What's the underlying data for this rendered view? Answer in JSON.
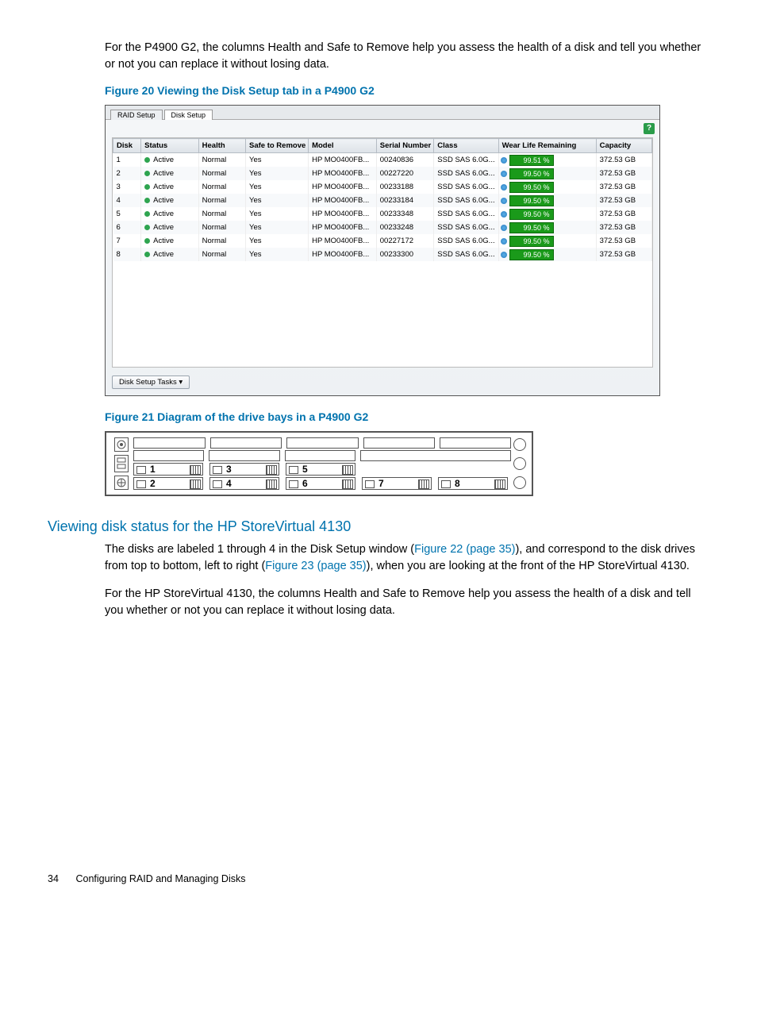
{
  "intro_para": "For the P4900 G2, the columns Health and Safe to Remove help you assess the health of a disk and tell you whether or not you can replace it without losing data.",
  "fig20_caption": "Figure 20 Viewing the Disk Setup tab in a P4900 G2",
  "fig21_caption": "Figure 21 Diagram of the drive bays in a P4900 G2",
  "section_heading": "Viewing disk status for the HP StoreVirtual 4130",
  "sec_para1_a": "The disks are labeled 1 through 4 in the Disk Setup window (",
  "sec_para1_link1": "Figure 22 (page 35)",
  "sec_para1_b": "), and correspond to the disk drives from top to bottom, left to right (",
  "sec_para1_link2": "Figure 23 (page 35)",
  "sec_para1_c": "), when you are looking at the front of the HP StoreVirtual 4130.",
  "sec_para2": "For the HP StoreVirtual 4130, the columns Health and Safe to Remove help you assess the health of a disk and tell you whether or not you can replace it without losing data.",
  "footer_page": "34",
  "footer_title": "Configuring RAID and Managing Disks",
  "screenshot": {
    "tab1": "RAID Setup",
    "tab2": "Disk Setup",
    "help": "?",
    "tasks_btn": "Disk Setup Tasks ▾",
    "columns": [
      "Disk",
      "Status",
      "Health",
      "Safe to Remove",
      "Model",
      "Serial Number",
      "Class",
      "Wear Life Remaining",
      "Capacity"
    ],
    "col_widths": [
      "32px",
      "66px",
      "54px",
      "72px",
      "78px",
      "66px",
      "74px",
      "112px",
      "64px"
    ],
    "rows": [
      {
        "disk": "1",
        "status": "Active",
        "health": "Normal",
        "safe": "Yes",
        "model": "HP MO0400FB...",
        "serial": "00240836",
        "class": "SSD SAS 6.0G...",
        "wear": "99.51 %",
        "cap": "372.53 GB"
      },
      {
        "disk": "2",
        "status": "Active",
        "health": "Normal",
        "safe": "Yes",
        "model": "HP MO0400FB...",
        "serial": "00227220",
        "class": "SSD SAS 6.0G...",
        "wear": "99.50 %",
        "cap": "372.53 GB"
      },
      {
        "disk": "3",
        "status": "Active",
        "health": "Normal",
        "safe": "Yes",
        "model": "HP MO0400FB...",
        "serial": "00233188",
        "class": "SSD SAS 6.0G...",
        "wear": "99.50 %",
        "cap": "372.53 GB"
      },
      {
        "disk": "4",
        "status": "Active",
        "health": "Normal",
        "safe": "Yes",
        "model": "HP MO0400FB...",
        "serial": "00233184",
        "class": "SSD SAS 6.0G...",
        "wear": "99.50 %",
        "cap": "372.53 GB"
      },
      {
        "disk": "5",
        "status": "Active",
        "health": "Normal",
        "safe": "Yes",
        "model": "HP MO0400FB...",
        "serial": "00233348",
        "class": "SSD SAS 6.0G...",
        "wear": "99.50 %",
        "cap": "372.53 GB"
      },
      {
        "disk": "6",
        "status": "Active",
        "health": "Normal",
        "safe": "Yes",
        "model": "HP MO0400FB...",
        "serial": "00233248",
        "class": "SSD SAS 6.0G...",
        "wear": "99.50 %",
        "cap": "372.53 GB"
      },
      {
        "disk": "7",
        "status": "Active",
        "health": "Normal",
        "safe": "Yes",
        "model": "HP MO0400FB...",
        "serial": "00227172",
        "class": "SSD SAS 6.0G...",
        "wear": "99.50 %",
        "cap": "372.53 GB"
      },
      {
        "disk": "8",
        "status": "Active",
        "health": "Normal",
        "safe": "Yes",
        "model": "HP MO0400FB...",
        "serial": "00233300",
        "class": "SSD SAS 6.0G...",
        "wear": "99.50 %",
        "cap": "372.53 GB"
      }
    ]
  },
  "bays": {
    "labels": [
      "1",
      "2",
      "3",
      "4",
      "5",
      "6",
      "7",
      "8"
    ]
  },
  "colors": {
    "hp_blue": "#0073ae",
    "wear_green": "#1a9a1a",
    "status_green": "#2ea44f"
  }
}
